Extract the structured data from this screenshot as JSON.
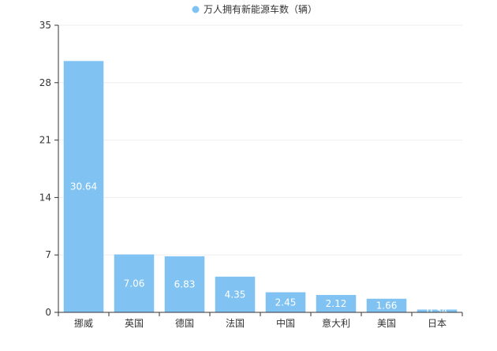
{
  "chart_data": {
    "type": "bar",
    "categories": [
      "挪威",
      "英国",
      "德国",
      "法国",
      "中国",
      "意大利",
      "美国",
      "日本"
    ],
    "series": [
      {
        "name": "万人拥有新能源车数（辆）",
        "values": [
          30.64,
          7.06,
          6.83,
          4.35,
          2.45,
          2.12,
          1.66,
          0.34
        ],
        "value_labels": [
          "30.64",
          "7.06",
          "6.83",
          "4.35",
          "2.45",
          "2.12",
          "1.66",
          "0.34"
        ]
      }
    ],
    "ylim": [
      0,
      35
    ],
    "yticks": [
      0,
      7,
      14,
      21,
      28,
      35
    ],
    "ytick_labels": [
      "0",
      "7",
      "14",
      "21",
      "28",
      "35"
    ],
    "legend_position": "top-center",
    "grid": true,
    "colors": {
      "bar": "#80c3f3",
      "axis": "#333333",
      "grid": "#eeeeee"
    }
  }
}
